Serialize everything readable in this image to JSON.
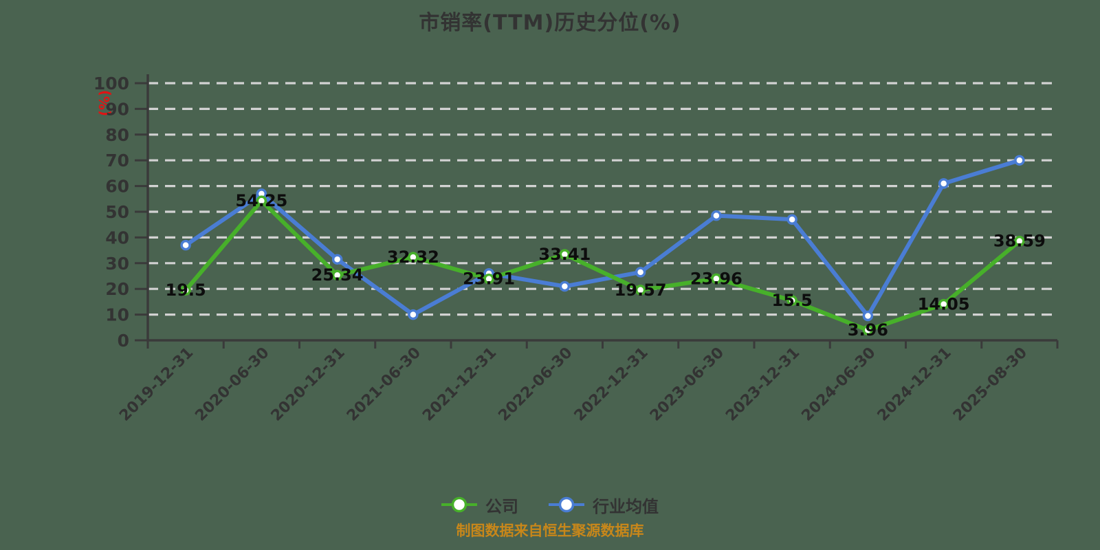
{
  "title": "市销率(TTM)历史分位(%)",
  "y_axis_unit": "(%)",
  "source_note": "制图数据来自恒生聚源数据库",
  "colors": {
    "background": "#4A6350",
    "title_text": "#333333",
    "axis": "#3A3A3A",
    "tick_text": "#333333",
    "grid": "#D2D2D2",
    "value_label_text": "#0D0D0D",
    "source_text": "#C8871A",
    "y_unit_text": "#E01414",
    "company_series": "#47B02A",
    "industry_series": "#4A7DD4",
    "marker_fill": "#FFFFFF"
  },
  "legend": {
    "items": [
      {
        "id": "company",
        "label": "公司",
        "color": "#47B02A"
      },
      {
        "id": "industry-average",
        "label": "行业均值",
        "color": "#4A7DD4"
      }
    ]
  },
  "chart_data": {
    "type": "line",
    "title": "市销率(TTM)历史分位(%)",
    "xlabel": "",
    "ylabel": "(%)",
    "ylim": [
      0,
      100
    ],
    "ytick_step": 10,
    "grid": "horizontal-dashed",
    "legend_position": "bottom-center",
    "categories": [
      "2019-12-31",
      "2020-06-30",
      "2020-12-31",
      "2021-06-30",
      "2021-12-31",
      "2022-06-30",
      "2022-12-31",
      "2023-06-30",
      "2023-12-31",
      "2024-06-30",
      "2024-12-31",
      "2025-08-30"
    ],
    "series": [
      {
        "id": "company",
        "name": "公司",
        "color": "#47B02A",
        "show_point_labels": true,
        "values": [
          19.5,
          54.25,
          25.34,
          32.32,
          23.91,
          33.41,
          19.57,
          23.96,
          15.5,
          3.96,
          14.05,
          38.59
        ]
      },
      {
        "id": "industry-average",
        "name": "行业均值",
        "color": "#4A7DD4",
        "show_point_labels": false,
        "values": [
          37,
          57,
          31.5,
          10,
          26,
          21,
          26.5,
          48.5,
          47,
          9.5,
          61,
          70
        ]
      }
    ]
  }
}
